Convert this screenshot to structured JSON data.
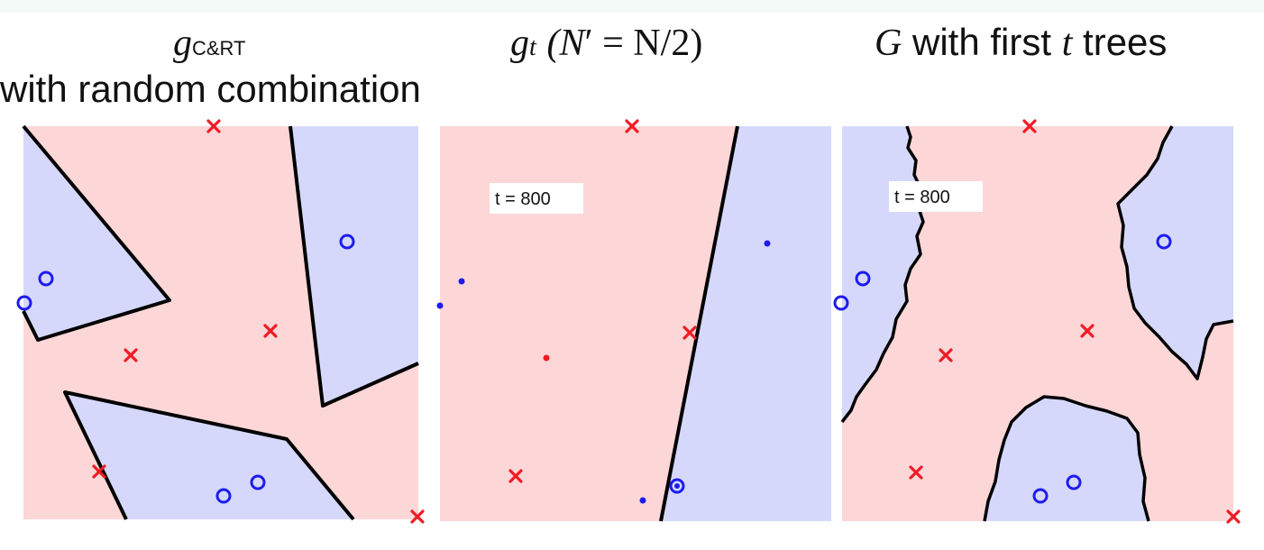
{
  "header": {
    "panel1_title_symbol": "g",
    "panel1_title_subscript": "C&RT",
    "panel1_title_line2": "with random combination",
    "panel2_title_symbol": "g",
    "panel2_title_subscript": "t",
    "panel2_title_rest_open": "(N",
    "panel2_title_prime_expr": "′ = N/2)",
    "panel3_title_symbol": "G",
    "panel3_title_mid": " with first ",
    "panel3_title_t": "t",
    "panel3_title_end": " trees"
  },
  "panels": [
    {
      "label": ""
    },
    {
      "label": "t = 800"
    },
    {
      "label": "t = 800"
    }
  ],
  "colors": {
    "negative_region": "#fdd6d8",
    "positive_region": "#d6d8fb",
    "negative_marker": "#ee1c25",
    "positive_marker": "#1c1cee",
    "boundary": "#000000"
  }
}
